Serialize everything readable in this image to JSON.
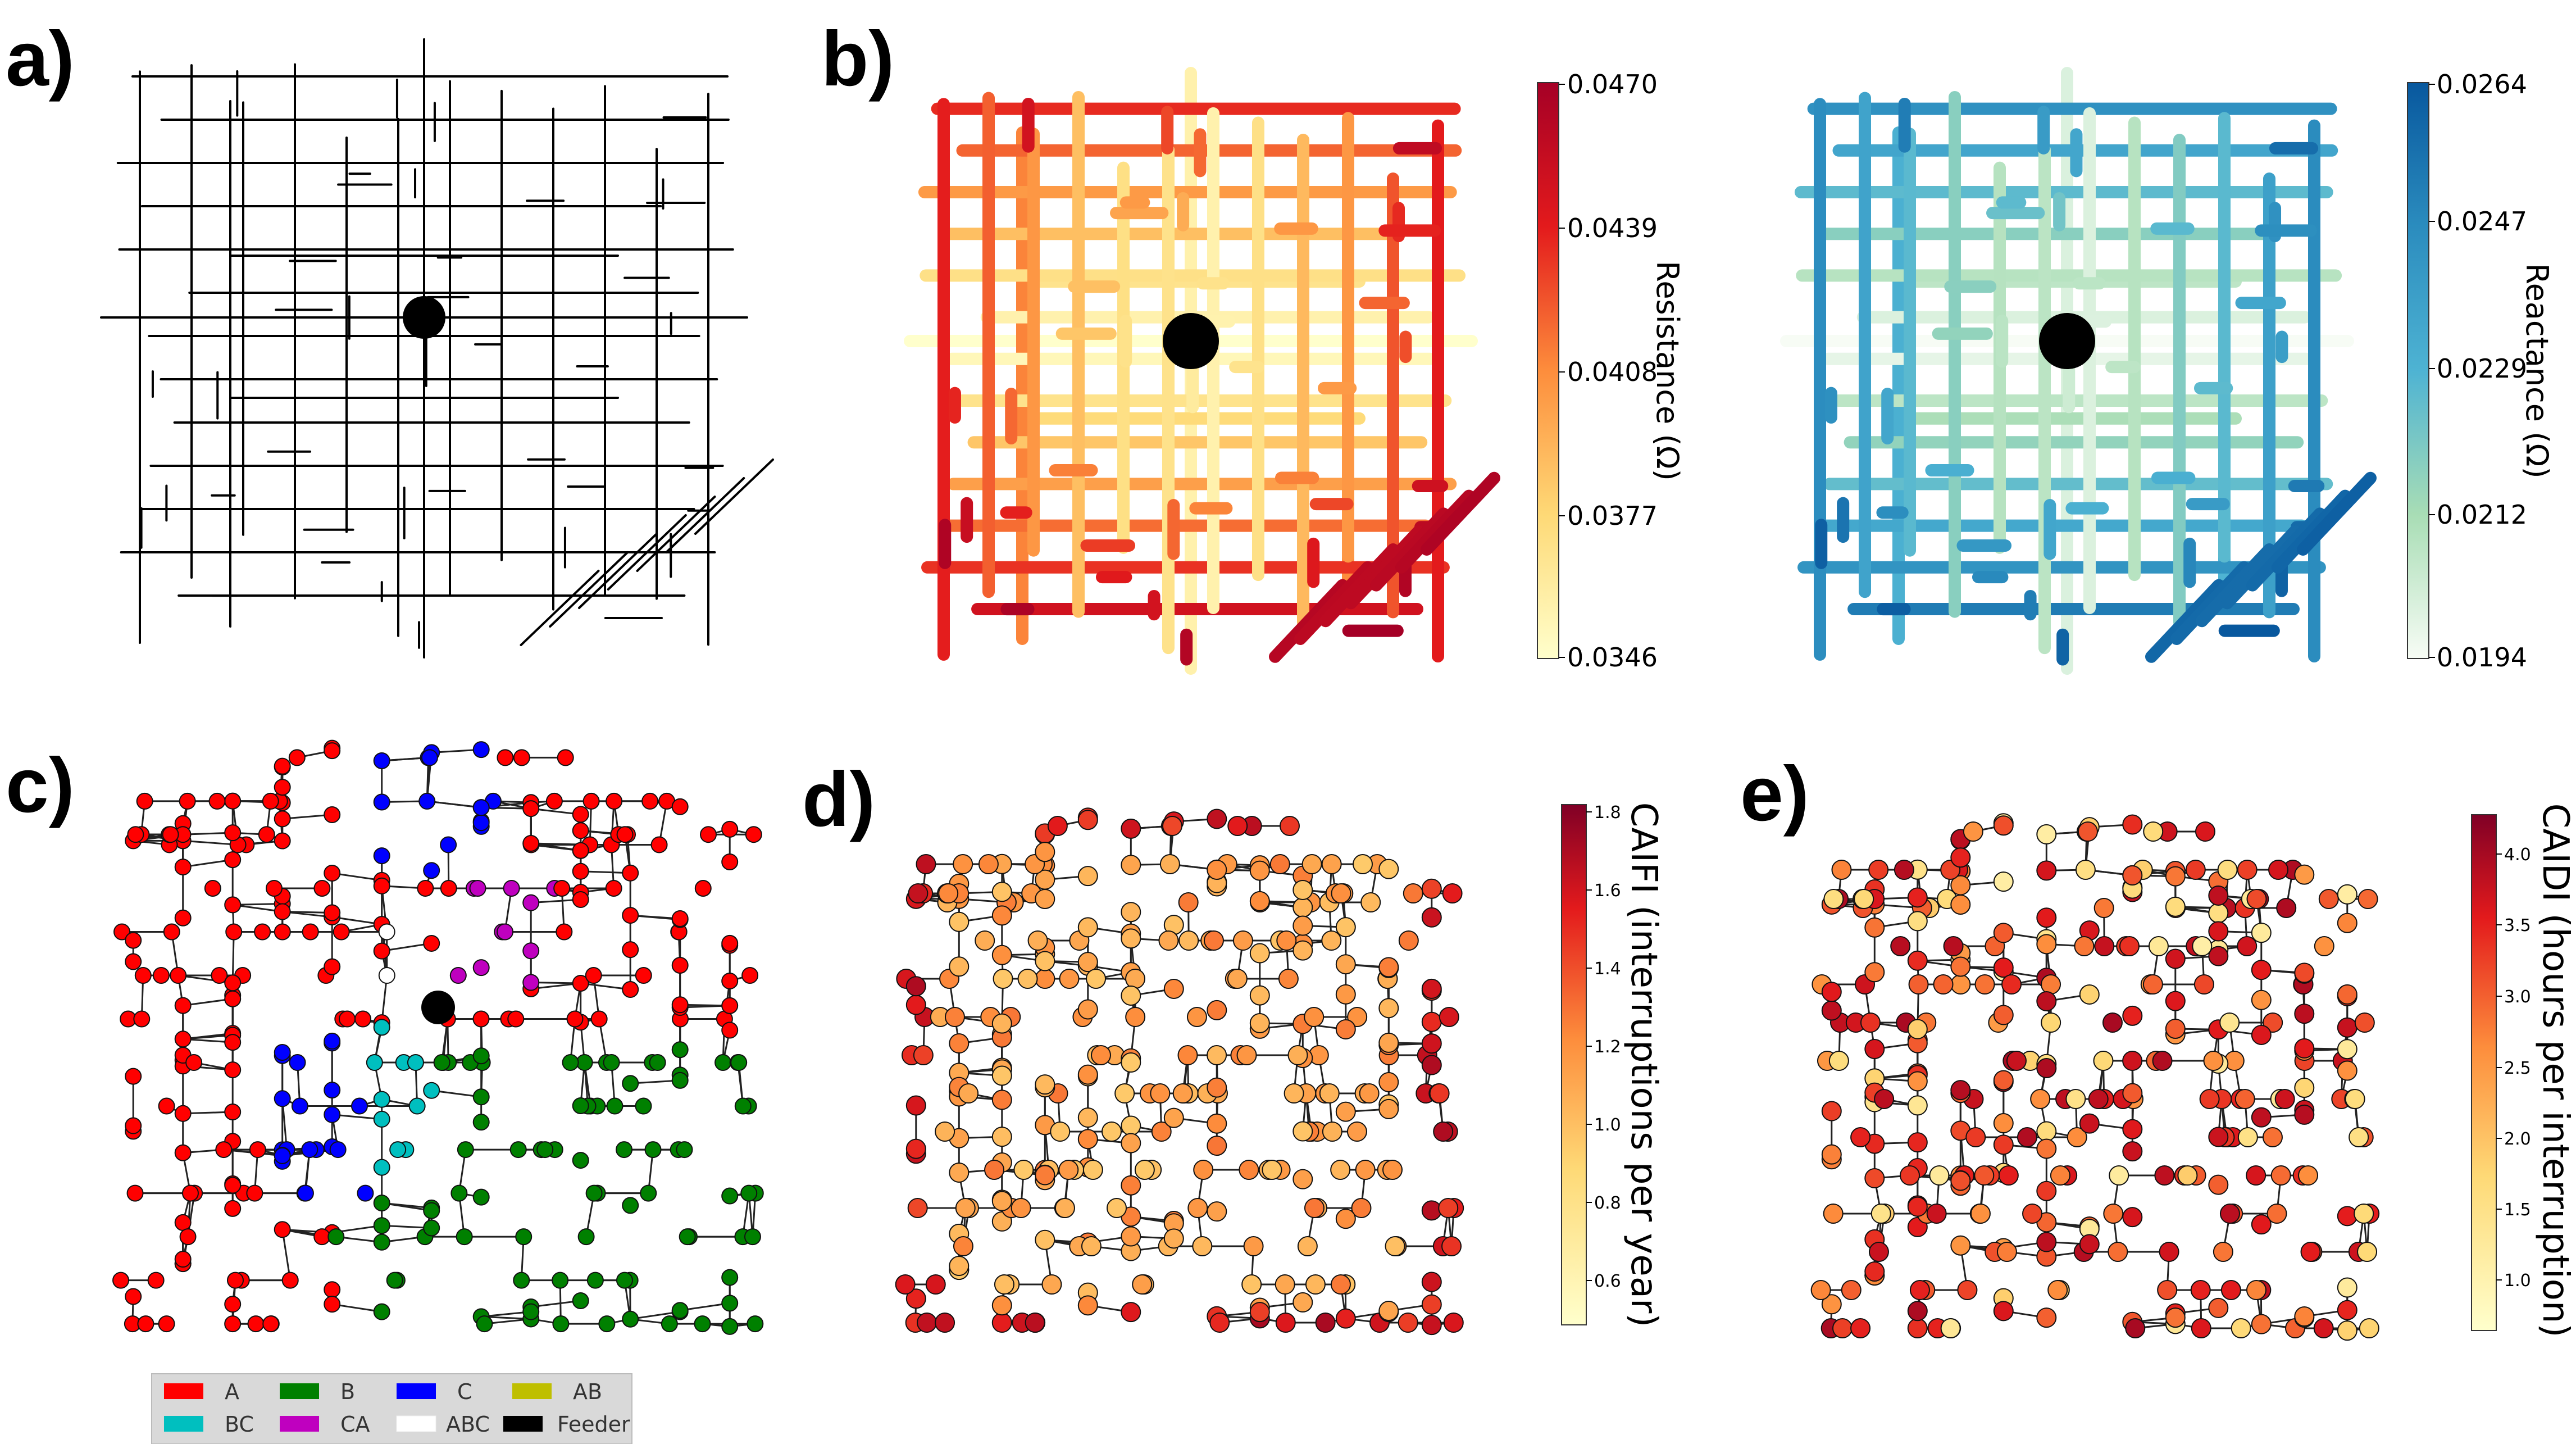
{
  "panels": {
    "a": {
      "label": "a)"
    },
    "b": {
      "label": "b)",
      "resistance": {
        "title": "Resistance (Ω)",
        "ticks": [
          "0.0470",
          "0.0439",
          "0.0408",
          "0.0377",
          "0.0346"
        ],
        "range": [
          0.0346,
          0.047
        ],
        "colors": [
          "#ffffcc",
          "#fed976",
          "#fd8d3c",
          "#e31a1c",
          "#a50026"
        ]
      },
      "reactance": {
        "title": "Reactance (Ω)",
        "ticks": [
          "0.0264",
          "0.0247",
          "0.0229",
          "0.0212",
          "0.0194"
        ],
        "range": [
          0.0194,
          0.0264
        ],
        "colors": [
          "#f7fcf5",
          "#a8ddb5",
          "#4eb3d3",
          "#2b8cbe",
          "#08589e"
        ]
      }
    },
    "c": {
      "label": "c)",
      "legend": [
        {
          "label": "A",
          "color": "#ff0000"
        },
        {
          "label": "B",
          "color": "#008000"
        },
        {
          "label": "C",
          "color": "#0000ff"
        },
        {
          "label": "AB",
          "color": "#bfbf00"
        },
        {
          "label": "BC",
          "color": "#00bfbf"
        },
        {
          "label": "CA",
          "color": "#bf00bf"
        },
        {
          "label": "ABC",
          "color": "#ffffff"
        },
        {
          "label": "Feeder",
          "color": "#000000"
        }
      ]
    },
    "d": {
      "label": "d)",
      "title": "CAIFI (interruptions per year)",
      "ticks": [
        "1.8",
        "1.6",
        "1.4",
        "1.2",
        "1.0",
        "0.8",
        "0.6"
      ],
      "range": [
        0.5,
        1.83
      ]
    },
    "e": {
      "label": "e)",
      "title": "CAIDI (hours per interruption)",
      "ticks": [
        "4.0",
        "3.5",
        "3.0",
        "2.5",
        "2.0",
        "1.5",
        "1.0"
      ],
      "range": [
        0.7,
        4.3
      ]
    }
  }
}
